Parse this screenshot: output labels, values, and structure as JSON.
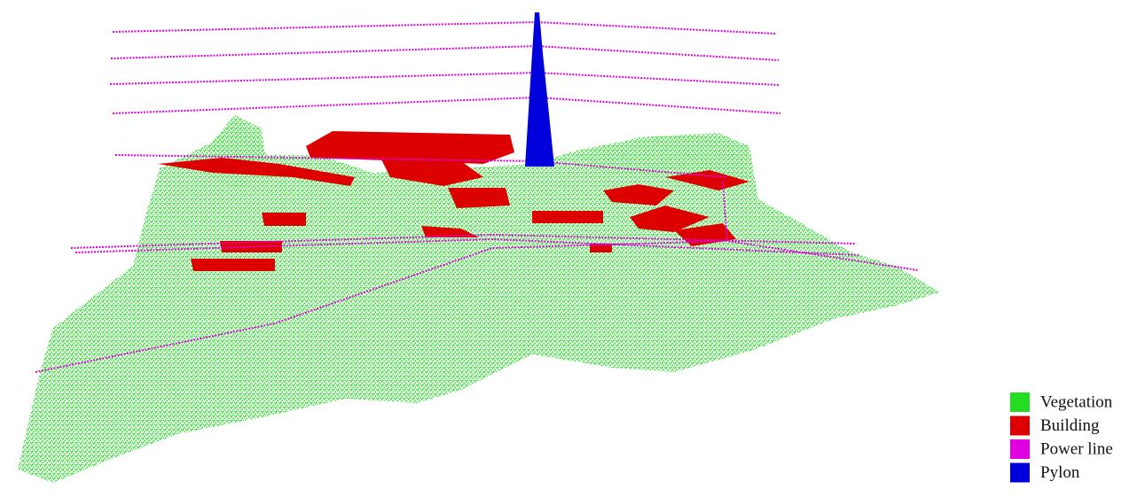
{
  "legend": {
    "items": [
      {
        "label": "Vegetation",
        "color": "#22dd22"
      },
      {
        "label": "Building",
        "color": "#dd0000"
      },
      {
        "label": "Power line",
        "color": "#e000e0"
      },
      {
        "label": "Pylon",
        "color": "#0000dd"
      }
    ]
  }
}
